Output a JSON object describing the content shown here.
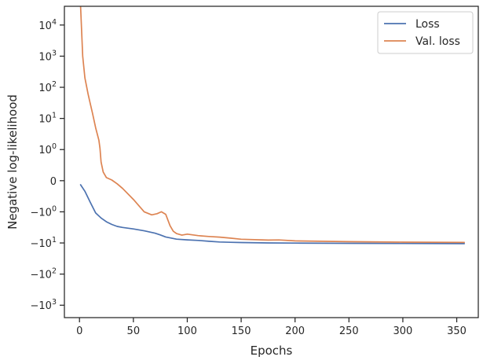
{
  "chart_data": {
    "type": "line",
    "title": "",
    "xlabel": "Epochs",
    "ylabel": "Negative log-likelihood",
    "xlim": [
      -14,
      370
    ],
    "x_ticks": [
      0,
      50,
      100,
      150,
      200,
      250,
      300,
      350
    ],
    "y_scale": "symlog",
    "ylim": [
      -2500,
      40000
    ],
    "y_ticks": [
      {
        "value": 10000,
        "base": "10",
        "exp": "4",
        "sign": ""
      },
      {
        "value": 1000,
        "base": "10",
        "exp": "3",
        "sign": ""
      },
      {
        "value": 100,
        "base": "10",
        "exp": "2",
        "sign": ""
      },
      {
        "value": 10,
        "base": "10",
        "exp": "1",
        "sign": ""
      },
      {
        "value": 1,
        "base": "10",
        "exp": "0",
        "sign": ""
      },
      {
        "value": 0,
        "base": "0",
        "exp": "",
        "sign": ""
      },
      {
        "value": -1,
        "base": "10",
        "exp": "0",
        "sign": "−"
      },
      {
        "value": -10,
        "base": "10",
        "exp": "1",
        "sign": "−"
      },
      {
        "value": -100,
        "base": "10",
        "exp": "2",
        "sign": "−"
      },
      {
        "value": -1000,
        "base": "10",
        "exp": "3",
        "sign": "−"
      }
    ],
    "grid": false,
    "legend_position": "top-right",
    "series": [
      {
        "name": "Loss",
        "color": "#4c72b0",
        "x": [
          1,
          5,
          10,
          15,
          20,
          25,
          30,
          35,
          40,
          50,
          60,
          70,
          75,
          80,
          85,
          90,
          100,
          110,
          120,
          130,
          140,
          150,
          175,
          200,
          250,
          300,
          357
        ],
        "y": [
          -0.13,
          -0.34,
          -0.69,
          -1.09,
          -1.58,
          -2.09,
          -2.55,
          -2.95,
          -3.18,
          -3.55,
          -4.07,
          -4.85,
          -5.5,
          -6.43,
          -6.97,
          -7.54,
          -7.95,
          -8.3,
          -8.82,
          -9.3,
          -9.52,
          -9.7,
          -10.0,
          -10.1,
          -10.3,
          -10.4,
          -10.5
        ]
      },
      {
        "name": "Val. loss",
        "color": "#dd8452",
        "x": [
          1,
          3,
          5,
          8,
          10,
          12,
          15,
          18,
          19,
          20,
          22,
          25,
          30,
          35,
          40,
          50,
          60,
          67,
          72,
          76,
          80,
          84,
          87,
          90,
          95,
          100,
          110,
          120,
          130,
          140,
          150,
          175,
          185,
          200,
          250,
          300,
          357
        ],
        "y": [
          40000,
          1000,
          200,
          60,
          30,
          15,
          5,
          2,
          1.1,
          0.6,
          0.28,
          0.1,
          0.02,
          -0.1,
          -0.25,
          -0.6,
          -1.0,
          -1.25,
          -1.15,
          -1.0,
          -1.2,
          -2.8,
          -4.2,
          -5.0,
          -5.6,
          -5.2,
          -5.8,
          -6.2,
          -6.5,
          -7.0,
          -7.6,
          -8.1,
          -8.0,
          -8.6,
          -9.1,
          -9.4,
          -9.6
        ]
      }
    ]
  }
}
